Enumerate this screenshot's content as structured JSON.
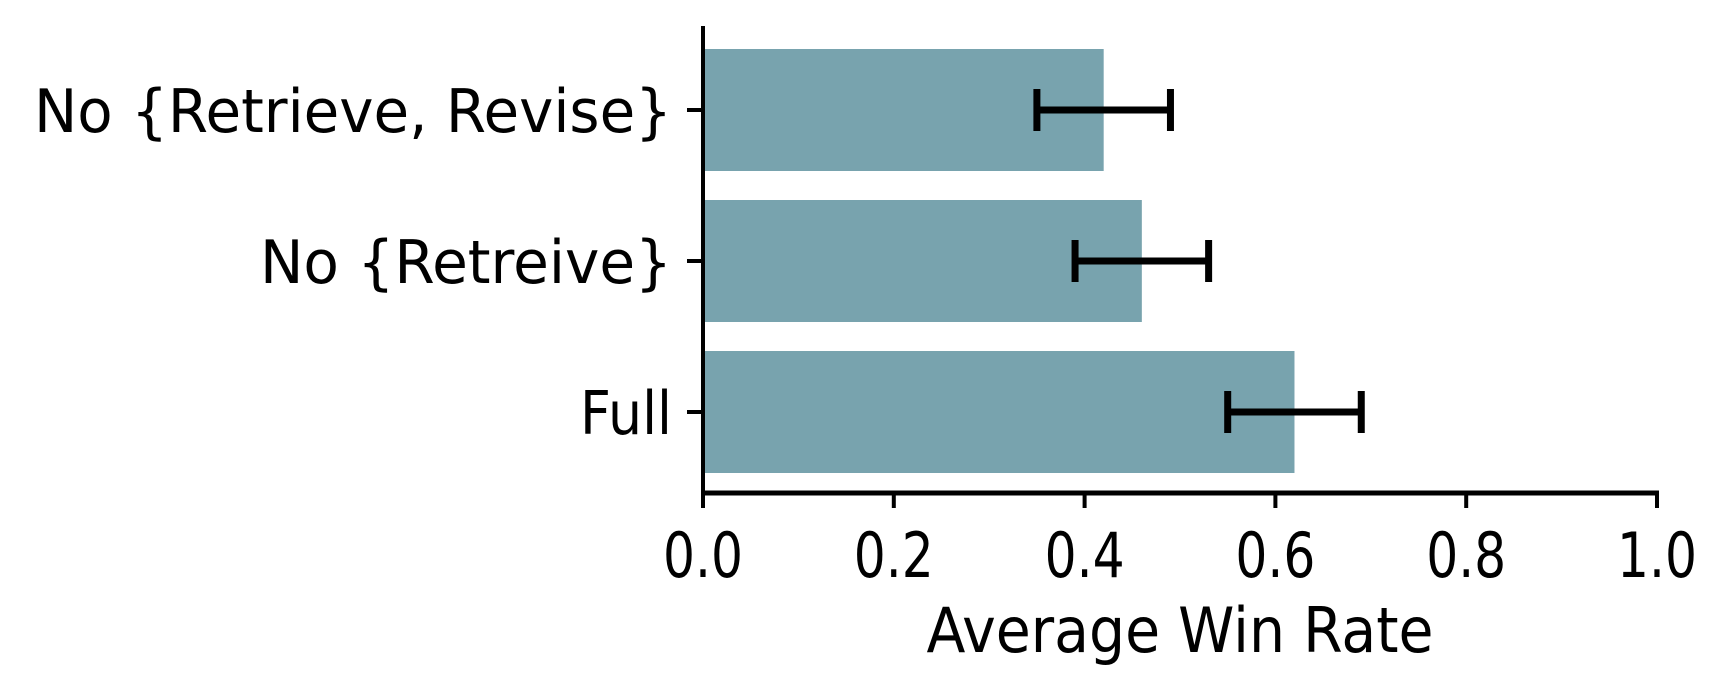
{
  "chart_data": {
    "type": "bar",
    "orientation": "horizontal",
    "title": "",
    "xlabel": "Average Win Rate",
    "ylabel": "",
    "categories": [
      "No {Retrieve, Revise}",
      "No {Retreive}",
      "Full"
    ],
    "series": [
      {
        "name": "Average Win Rate",
        "values": [
          0.42,
          0.46,
          0.62
        ],
        "errors": [
          0.07,
          0.07,
          0.07
        ]
      }
    ],
    "xlim": [
      0.0,
      1.0
    ],
    "xticks": [
      0.0,
      0.2,
      0.4,
      0.6,
      0.8,
      1.0
    ],
    "xtick_labels": [
      "0.0",
      "0.2",
      "0.4",
      "0.6",
      "0.8",
      "1.0"
    ],
    "grid": false,
    "legend": null,
    "colors": {
      "bar": "#78a3ae",
      "error_bar": "#000000",
      "axis": "#000000",
      "text": "#000000",
      "background": "#ffffff"
    }
  }
}
